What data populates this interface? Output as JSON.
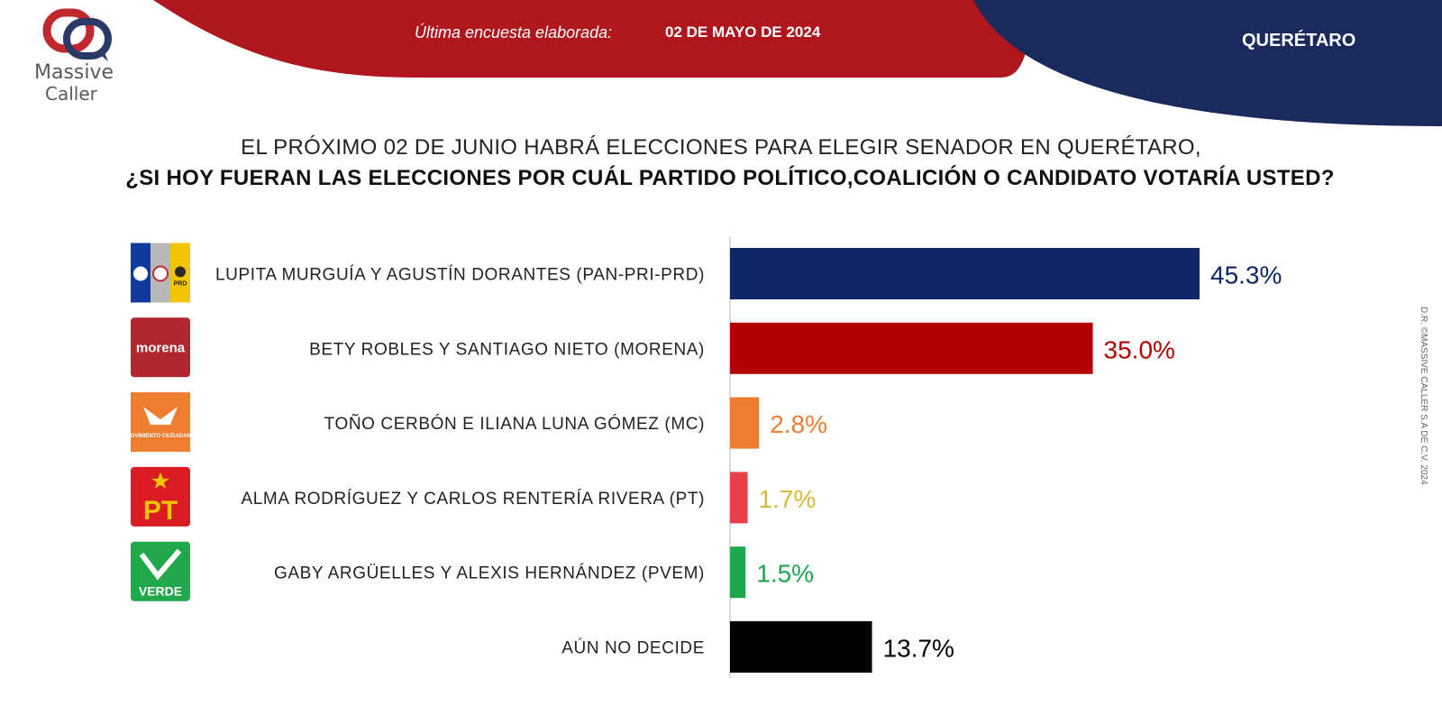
{
  "brand": {
    "name_line1": "Massive",
    "name_line2": "Caller",
    "tagline": ""
  },
  "header": {
    "survey_label": "Última encuesta elaborada:",
    "survey_date": "02 DE MAYO DE 2024",
    "region": "QUERÉTARO"
  },
  "question": {
    "line1": "EL PRÓXIMO 02 DE JUNIO HABRÁ ELECCIONES PARA ELEGIR SENADOR EN QUERÉTARO,",
    "line2": "¿SI HOY FUERAN LAS ELECCIONES POR CUÁL PARTIDO POLÍTICO,COALICIÓN O CANDIDATO VOTARÍA USTED?"
  },
  "side_note": "D.R. ©MASSIVE CALLER S.A DE C.V. 2024",
  "colors": {
    "banner_red": "#b0161d",
    "banner_navy": "#1a2a5c",
    "pan": "#0f2668",
    "morena": "#b30000",
    "mc": "#ef7d2f",
    "pt": "#e8404a",
    "pt_label": "#d6b93a",
    "pvem": "#1aa84b",
    "undecided": "#000000"
  },
  "chart_data": {
    "type": "bar",
    "orientation": "horizontal",
    "categories": [
      "LUPITA MURGUÍA Y AGUSTÍN DORANTES (PAN-PRI-PRD)",
      "BETY ROBLES Y SANTIAGO NIETO (MORENA)",
      "TOÑO CERBÓN E ILIANA LUNA GÓMEZ (MC)",
      "ALMA RODRÍGUEZ Y CARLOS RENTERÍA RIVERA (PT)",
      "GABY ARGÜELLES Y ALEXIS HERNÁNDEZ (PVEM)",
      "AÚN NO DECIDE"
    ],
    "values": [
      45.3,
      35.0,
      2.8,
      1.7,
      1.5,
      13.7
    ],
    "value_labels": [
      "45.3%",
      "35.0%",
      "2.8%",
      "1.7%",
      "1.5%",
      "13.7%"
    ],
    "bar_colors": [
      "#0f2668",
      "#b30000",
      "#ef7d2f",
      "#e8404a",
      "#1aa84b",
      "#000000"
    ],
    "label_colors": [
      "#0f2668",
      "#b30000",
      "#ef7d2f",
      "#d6b93a",
      "#1aa84b",
      "#000000"
    ],
    "logos": [
      "pan-pri-prd-logo",
      "morena-logo",
      "mc-logo",
      "pt-logo",
      "pvem-logo",
      ""
    ],
    "logo_text": [
      "PAN PRI PRD",
      "morena",
      "MOVIMIENTO CIUDADANO",
      "PT",
      "VERDE",
      ""
    ],
    "xlim": [
      0,
      45.3
    ],
    "grid": false,
    "legend": "none"
  }
}
